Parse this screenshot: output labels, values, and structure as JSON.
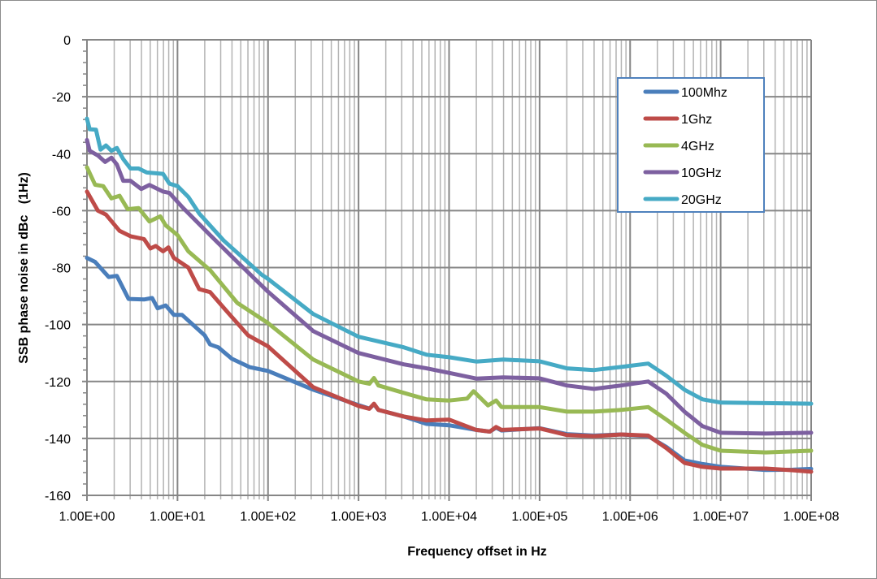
{
  "chart_data": {
    "type": "line",
    "title": "",
    "xlabel": "Frequency offset in Hz",
    "ylabel": "SSB phase noise in dBc   (1Hz)",
    "xscale": "log",
    "xlim_log10": [
      0,
      8
    ],
    "ylim": [
      -160,
      0
    ],
    "grid": true,
    "legend_position": "top-right",
    "x_tick_labels": [
      "1.00E+00",
      "1.00E+01",
      "1.00E+02",
      "1.00E+03",
      "1.00E+04",
      "1.00E+05",
      "1.00E+06",
      "1.00E+07",
      "1.00E+08"
    ],
    "y_tick_labels": [
      "0",
      "-20",
      "-40",
      "-60",
      "-80",
      "-100",
      "-120",
      "-140",
      "-160"
    ],
    "y_ticks": [
      0,
      -20,
      -40,
      -60,
      -80,
      -100,
      -120,
      -140,
      -160
    ],
    "series": [
      {
        "name": "100Mhz",
        "color": "#4a7ebb",
        "log10_x": [
          0,
          0.09,
          0.24,
          0.33,
          0.46,
          0.63,
          0.72,
          0.78,
          0.87,
          0.96,
          1.05,
          1.3,
          1.36,
          1.45,
          1.6,
          1.8,
          2,
          2.5,
          3,
          3.12,
          3.17,
          3.22,
          3.5,
          3.75,
          4,
          4.3,
          4.45,
          4.52,
          4.58,
          5,
          5.3,
          5.6,
          5.9,
          6.2,
          6.4,
          6.6,
          6.8,
          7,
          7.5,
          7.8,
          8
        ],
        "y": [
          -76.6,
          -78,
          -83.3,
          -82.9,
          -91,
          -91.2,
          -90.7,
          -94.3,
          -93.3,
          -96.6,
          -96.6,
          -103.8,
          -107,
          -108,
          -112,
          -115,
          -116.3,
          -122.9,
          -128.3,
          -129.5,
          -128,
          -130,
          -132.3,
          -134.9,
          -135.4,
          -137,
          -137.6,
          -136.2,
          -137.2,
          -136.4,
          -138.5,
          -139,
          -138.6,
          -139.2,
          -143,
          -147.7,
          -149,
          -150,
          -151.1,
          -151,
          -150.7
        ]
      },
      {
        "name": "1Ghz",
        "color": "#be4b48",
        "log10_x": [
          0,
          0.12,
          0.21,
          0.36,
          0.48,
          0.63,
          0.7,
          0.76,
          0.84,
          0.9,
          0.96,
          1.12,
          1.24,
          1.36,
          1.54,
          1.78,
          2,
          2.5,
          3,
          3.12,
          3.17,
          3.22,
          3.5,
          3.75,
          4,
          4.3,
          4.45,
          4.52,
          4.58,
          5,
          5.3,
          5.6,
          5.9,
          6.2,
          6.4,
          6.6,
          6.8,
          7,
          7.5,
          7.8,
          8
        ],
        "y": [
          -53.3,
          -60,
          -61.4,
          -67.1,
          -69,
          -70,
          -73.3,
          -72.4,
          -74.3,
          -72.9,
          -76.6,
          -80,
          -87.6,
          -88.6,
          -95.2,
          -103.8,
          -107.7,
          -122,
          -128.6,
          -129.6,
          -127.8,
          -130,
          -132.3,
          -133.7,
          -133.4,
          -137,
          -137.6,
          -136,
          -137,
          -136.5,
          -138.8,
          -139.2,
          -138.6,
          -139,
          -143.4,
          -148.6,
          -150,
          -150.6,
          -150.6,
          -151.2,
          -151.7
        ]
      },
      {
        "name": "4GHz",
        "color": "#98b954",
        "log10_x": [
          0,
          0.09,
          0.18,
          0.27,
          0.36,
          0.45,
          0.57,
          0.69,
          0.81,
          0.87,
          1,
          1.12,
          1.36,
          1.66,
          2,
          2.5,
          3,
          3.12,
          3.17,
          3.22,
          3.5,
          3.75,
          4,
          4.2,
          4.27,
          4.43,
          4.52,
          4.58,
          5,
          5.3,
          5.6,
          5.9,
          6.2,
          6.4,
          6.6,
          6.8,
          7,
          7.5,
          8
        ],
        "y": [
          -44.8,
          -50.9,
          -51.4,
          -55.7,
          -54.8,
          -59.5,
          -59.1,
          -63.8,
          -62,
          -65.2,
          -68.6,
          -74.3,
          -80.9,
          -92.4,
          -99.5,
          -112.3,
          -120,
          -120.8,
          -118.8,
          -121.4,
          -124,
          -126.3,
          -126.7,
          -126,
          -123.4,
          -128.4,
          -126.7,
          -129,
          -129,
          -130.6,
          -130.6,
          -130,
          -129,
          -133.4,
          -138,
          -142.3,
          -144.3,
          -144.9,
          -144.3
        ]
      },
      {
        "name": "10GHz",
        "color": "#7d60a0",
        "log10_x": [
          0,
          0.03,
          0.12,
          0.2,
          0.27,
          0.33,
          0.4,
          0.48,
          0.6,
          0.69,
          0.84,
          0.91,
          1.06,
          1.36,
          1.66,
          2,
          2.5,
          3,
          3.5,
          3.75,
          4,
          4.3,
          4.6,
          5,
          5.3,
          5.6,
          5.9,
          6.2,
          6.4,
          6.6,
          6.8,
          7,
          7.5,
          8
        ],
        "y": [
          -35.2,
          -39,
          -40.6,
          -42.9,
          -41.4,
          -43.8,
          -49.5,
          -49.5,
          -52.4,
          -51,
          -53.3,
          -53.8,
          -59,
          -68.6,
          -78,
          -88.5,
          -102.3,
          -110,
          -114,
          -115.4,
          -117,
          -119,
          -118.6,
          -118.9,
          -121.4,
          -122.6,
          -121.4,
          -120,
          -124.3,
          -130.6,
          -135.7,
          -138,
          -138.3,
          -138
        ]
      },
      {
        "name": "20GHz",
        "color": "#46aac5",
        "log10_x": [
          0,
          0.03,
          0.1,
          0.15,
          0.21,
          0.27,
          0.33,
          0.4,
          0.48,
          0.57,
          0.66,
          0.84,
          0.91,
          1,
          1.12,
          1.24,
          1.51,
          1.93,
          2,
          2.5,
          3,
          3.5,
          3.75,
          4,
          4.3,
          4.6,
          5,
          5.3,
          5.6,
          5.9,
          6.2,
          6.4,
          6.6,
          6.8,
          7,
          7.5,
          8
        ],
        "y": [
          -27.7,
          -31.4,
          -31.6,
          -38.6,
          -37.1,
          -39,
          -38,
          -41.9,
          -45.2,
          -45.2,
          -46.6,
          -47.1,
          -50.5,
          -51.4,
          -55.2,
          -61,
          -70.5,
          -82.5,
          -84,
          -96.3,
          -104.3,
          -108,
          -110.6,
          -111.5,
          -113,
          -112.3,
          -112.9,
          -115.4,
          -116,
          -114.9,
          -113.7,
          -118,
          -122.9,
          -126.3,
          -127.4,
          -127.6,
          -127.8
        ]
      }
    ]
  }
}
